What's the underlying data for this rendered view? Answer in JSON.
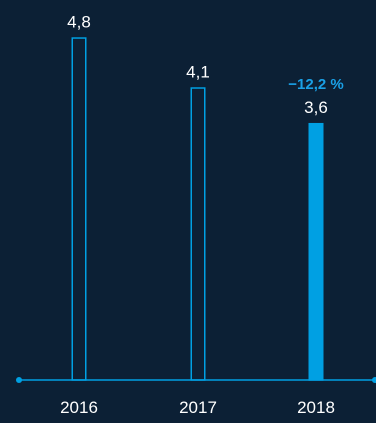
{
  "colors": {
    "background": "#0c2035",
    "accent": "#00a0e3",
    "outline": "#00a0e3",
    "text": "#ffffff",
    "change_text": "#1aa0e6"
  },
  "chart_data": {
    "type": "bar",
    "categories": [
      "2016",
      "2017",
      "2018"
    ],
    "values": [
      4.8,
      4.1,
      3.6
    ],
    "value_labels": [
      "4,8",
      "4,1",
      "3,6"
    ],
    "highlight_index": 2,
    "change_annotation": "−12,2 %",
    "title": "",
    "xlabel": "",
    "ylabel": "",
    "ylim": [
      0,
      5.2
    ],
    "grid": false,
    "legend": "none"
  }
}
